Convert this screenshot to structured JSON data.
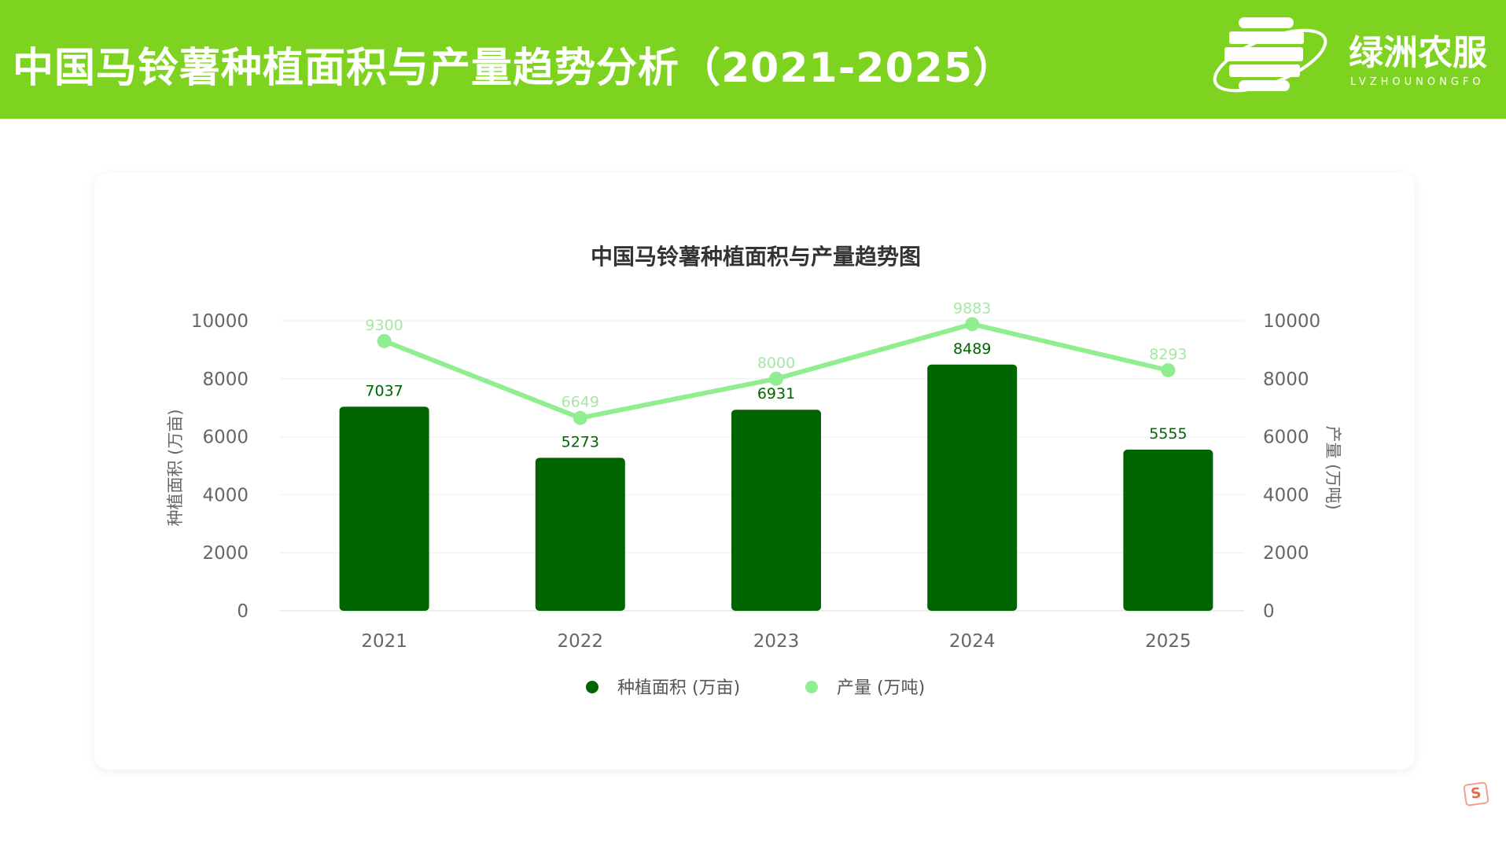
{
  "header": {
    "title": "中国马铃薯种植面积与产量趋势分析（2021-2025）",
    "bg_color": "#7ed321"
  },
  "logo": {
    "name": "绿洲农服",
    "subtitle": "LVZHOUNONGFO"
  },
  "chart_data": {
    "type": "bar+line",
    "title": "中国马铃薯种植面积与产量趋势图",
    "categories": [
      "2021",
      "2022",
      "2023",
      "2024",
      "2025"
    ],
    "series": [
      {
        "name": "种植面积 (万亩)",
        "type": "bar",
        "axis": "left",
        "color": "#006400",
        "values": [
          7037,
          5273,
          6931,
          8489,
          5555
        ]
      },
      {
        "name": "产量 (万吨)",
        "type": "line",
        "axis": "right",
        "color": "#90ee90",
        "values": [
          9300,
          6649,
          8000,
          9883,
          8293
        ]
      }
    ],
    "ylabel_left": "种植面积 (万亩)",
    "ylabel_right": "产量 (万吨)",
    "ylim": [
      0,
      10000
    ],
    "yticks": [
      "0",
      "2000",
      "4000",
      "6000",
      "8000",
      "10000"
    ],
    "grid": true,
    "legend": "bottom"
  }
}
